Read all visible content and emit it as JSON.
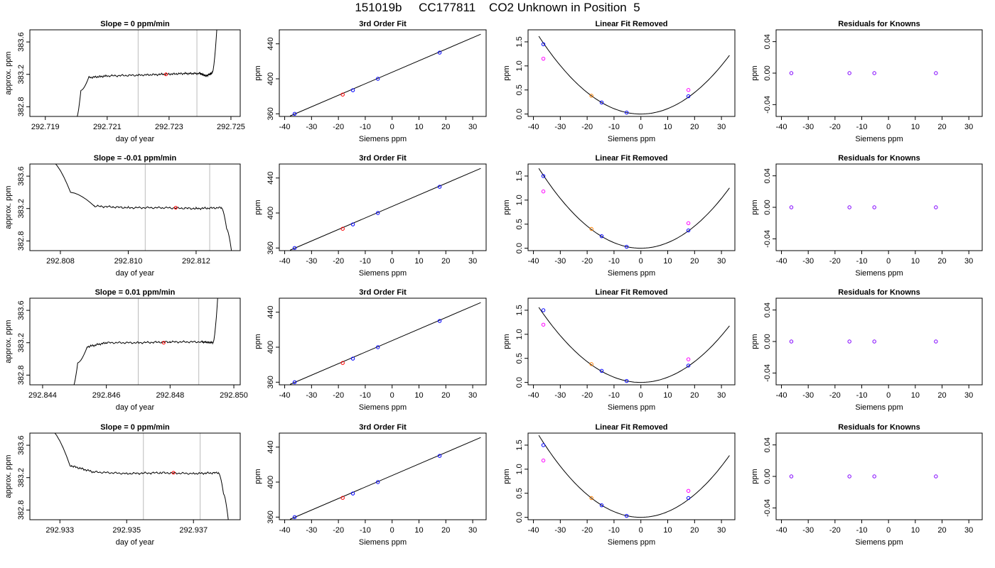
{
  "page_title": "151019b     CC177811    CO2 Unknown in Position  5",
  "chart_data": [
    {
      "type": "line",
      "title": "Slope =  0  ppm/min",
      "xlabel": "day of year",
      "ylabel": "approx. ppm",
      "xlim": [
        292.7185,
        292.7253
      ],
      "ylim": [
        382.68,
        383.75
      ],
      "xticks": [
        "292.719",
        "292.721",
        "292.723",
        "292.725"
      ],
      "yticks": [
        "382.8",
        "383.2",
        "383.6"
      ],
      "vlines": [
        292.722,
        292.7239
      ],
      "line_color": "#000000",
      "vline_color": "#bbbbbb",
      "series": [
        {
          "values": [
            [
              292.72,
              382.65
            ],
            [
              292.72015,
              383.0
            ],
            [
              292.7204,
              383.16
            ],
            [
              292.721,
              383.18
            ],
            [
              292.722,
              383.19
            ],
            [
              292.7228,
              383.2
            ],
            [
              292.7235,
              383.21
            ],
            [
              292.724,
              383.21
            ],
            [
              292.7242,
              383.18
            ],
            [
              292.7244,
              383.22
            ],
            [
              292.72455,
              383.8
            ]
          ]
        }
      ],
      "marker": {
        "x": 292.7229,
        "y": 383.2,
        "color": "#ff0000"
      }
    },
    {
      "type": "scatter",
      "title": "3rd Order Fit",
      "xlabel": "Siemens ppm",
      "ylabel": "ppm",
      "xlim": [
        -42,
        35
      ],
      "ylim": [
        357,
        456
      ],
      "xticks": [
        -40,
        -30,
        -20,
        -10,
        0,
        10,
        20,
        30
      ],
      "yticks": [
        360,
        400,
        440
      ],
      "line": [
        [
          -38,
          357.5
        ],
        [
          33,
          451
        ]
      ],
      "points": [
        {
          "x": -36.3,
          "y": 360.0,
          "color": "#0000ff"
        },
        {
          "x": -18.4,
          "y": 382.0,
          "color": "#ff0000"
        },
        {
          "x": -14.6,
          "y": 387.0,
          "color": "#0000ff"
        },
        {
          "x": -5.3,
          "y": 400.0,
          "color": "#0000ff"
        },
        {
          "x": 17.7,
          "y": 430.0,
          "color": "#0000ff"
        }
      ]
    },
    {
      "type": "scatter",
      "title": "Linear Fit Removed",
      "xlabel": "Siemens ppm",
      "ylabel": "ppm",
      "xlim": [
        -42,
        35
      ],
      "ylim": [
        -0.05,
        1.75
      ],
      "xticks": [
        -40,
        -30,
        -20,
        -10,
        0,
        10,
        20,
        30
      ],
      "yticks": [
        "0.0",
        "0.5",
        "1.0",
        "1.5"
      ],
      "curve_coefficient": 0.00112,
      "curve_range": [
        -38,
        33
      ],
      "points": [
        {
          "x": -36.3,
          "y": 1.45,
          "color": "#0000ff"
        },
        {
          "x": -36.3,
          "y": 1.15,
          "color": "#ff00ff"
        },
        {
          "x": -18.4,
          "y": 0.38,
          "color": "#ff8000"
        },
        {
          "x": -14.6,
          "y": 0.24,
          "color": "#0000ff"
        },
        {
          "x": -5.3,
          "y": 0.03,
          "color": "#0000ff"
        },
        {
          "x": 17.7,
          "y": 0.37,
          "color": "#0000ff"
        },
        {
          "x": 17.7,
          "y": 0.5,
          "color": "#ff00ff"
        }
      ]
    },
    {
      "type": "scatter",
      "title": "Residuals for Knowns",
      "xlabel": "Siemens ppm",
      "ylabel": "ppm",
      "xlim": [
        -42,
        35
      ],
      "ylim": [
        -0.055,
        0.055
      ],
      "xticks": [
        -40,
        -30,
        -20,
        -10,
        0,
        10,
        20,
        30
      ],
      "yticks": [
        "-0.04",
        "0.00",
        "0.04"
      ],
      "points": [
        {
          "x": -36.3,
          "y": 0,
          "color": "#8000ff"
        },
        {
          "x": -14.6,
          "y": 0,
          "color": "#8000ff"
        },
        {
          "x": -5.3,
          "y": 0,
          "color": "#8000ff"
        },
        {
          "x": 17.7,
          "y": 0,
          "color": "#8000ff"
        }
      ]
    },
    {
      "type": "line",
      "title": "Slope =  -0.01  ppm/min",
      "xlabel": "day of year",
      "ylabel": "approx. ppm",
      "xlim": [
        292.8071,
        292.8133
      ],
      "ylim": [
        382.68,
        383.75
      ],
      "xticks": [
        "292.808",
        "292.810",
        "292.812"
      ],
      "yticks": [
        "382.8",
        "383.2",
        "383.6"
      ],
      "vlines": [
        292.8105,
        292.8124
      ],
      "line_color": "#000000",
      "vline_color": "#bbbbbb",
      "series": [
        {
          "values": [
            [
              292.8077,
              383.8
            ],
            [
              292.8083,
              383.4
            ],
            [
              292.809,
              383.23
            ],
            [
              292.81,
              383.21
            ],
            [
              292.811,
              383.21
            ],
            [
              292.812,
              383.2
            ],
            [
              292.81275,
              383.21
            ],
            [
              292.8129,
              382.95
            ],
            [
              292.81305,
              382.65
            ]
          ]
        }
      ],
      "marker": {
        "x": 292.8114,
        "y": 383.21,
        "color": "#ff0000"
      }
    },
    {
      "type": "scatter",
      "title": "3rd Order Fit",
      "xlabel": "Siemens ppm",
      "ylabel": "ppm",
      "xlim": [
        -42,
        35
      ],
      "ylim": [
        357,
        456
      ],
      "xticks": [
        -40,
        -30,
        -20,
        -10,
        0,
        10,
        20,
        30
      ],
      "yticks": [
        360,
        400,
        440
      ],
      "line": [
        [
          -38,
          357.5
        ],
        [
          33,
          451
        ]
      ],
      "points": [
        {
          "x": -36.3,
          "y": 360.0,
          "color": "#0000ff"
        },
        {
          "x": -18.4,
          "y": 382.0,
          "color": "#ff0000"
        },
        {
          "x": -14.6,
          "y": 387.0,
          "color": "#0000ff"
        },
        {
          "x": -5.3,
          "y": 400.0,
          "color": "#0000ff"
        },
        {
          "x": 17.7,
          "y": 430.0,
          "color": "#0000ff"
        }
      ]
    },
    {
      "type": "scatter",
      "title": "Linear Fit Removed",
      "xlabel": "Siemens ppm",
      "ylabel": "ppm",
      "xlim": [
        -42,
        35
      ],
      "ylim": [
        -0.05,
        1.75
      ],
      "xticks": [
        -40,
        -30,
        -20,
        -10,
        0,
        10,
        20,
        30
      ],
      "yticks": [
        "0.0",
        "0.5",
        "1.0",
        "1.5"
      ],
      "curve_coefficient": 0.00115,
      "curve_range": [
        -38,
        33
      ],
      "points": [
        {
          "x": -36.3,
          "y": 1.5,
          "color": "#0000ff"
        },
        {
          "x": -36.3,
          "y": 1.18,
          "color": "#ff00ff"
        },
        {
          "x": -18.4,
          "y": 0.4,
          "color": "#ff8000"
        },
        {
          "x": -14.6,
          "y": 0.25,
          "color": "#0000ff"
        },
        {
          "x": -5.3,
          "y": 0.03,
          "color": "#0000ff"
        },
        {
          "x": 17.7,
          "y": 0.37,
          "color": "#0000ff"
        },
        {
          "x": 17.7,
          "y": 0.52,
          "color": "#ff00ff"
        }
      ]
    },
    {
      "type": "scatter",
      "title": "Residuals for Knowns",
      "xlabel": "Siemens ppm",
      "ylabel": "ppm",
      "xlim": [
        -42,
        35
      ],
      "ylim": [
        -0.055,
        0.055
      ],
      "xticks": [
        -40,
        -30,
        -20,
        -10,
        0,
        10,
        20,
        30
      ],
      "yticks": [
        "-0.04",
        "0.00",
        "0.04"
      ],
      "points": [
        {
          "x": -36.3,
          "y": 0,
          "color": "#8000ff"
        },
        {
          "x": -14.6,
          "y": 0,
          "color": "#8000ff"
        },
        {
          "x": -5.3,
          "y": 0,
          "color": "#8000ff"
        },
        {
          "x": 17.7,
          "y": 0,
          "color": "#8000ff"
        }
      ]
    },
    {
      "type": "line",
      "title": "Slope =  0.01  ppm/min",
      "xlabel": "day of year",
      "ylabel": "approx. ppm",
      "xlim": [
        292.8436,
        292.8502
      ],
      "ylim": [
        382.68,
        383.75
      ],
      "xticks": [
        "292.844",
        "292.846",
        "292.848",
        "292.850"
      ],
      "yticks": [
        "382.8",
        "383.2",
        "383.6"
      ],
      "vlines": [
        292.847,
        292.8489
      ],
      "line_color": "#000000",
      "vline_color": "#bbbbbb",
      "series": [
        {
          "values": [
            [
              292.84495,
              382.65
            ],
            [
              292.8451,
              382.95
            ],
            [
              292.8454,
              383.15
            ],
            [
              292.846,
              383.2
            ],
            [
              292.847,
              383.2
            ],
            [
              292.848,
              383.21
            ],
            [
              292.849,
              383.21
            ],
            [
              292.84935,
              383.2
            ],
            [
              292.8495,
              383.8
            ]
          ]
        }
      ],
      "marker": {
        "x": 292.8478,
        "y": 383.2,
        "color": "#ff0000"
      }
    },
    {
      "type": "scatter",
      "title": "3rd Order Fit",
      "xlabel": "Siemens ppm",
      "ylabel": "ppm",
      "xlim": [
        -42,
        35
      ],
      "ylim": [
        357,
        456
      ],
      "xticks": [
        -40,
        -30,
        -20,
        -10,
        0,
        10,
        20,
        30
      ],
      "yticks": [
        360,
        400,
        440
      ],
      "line": [
        [
          -38,
          357.5
        ],
        [
          33,
          451
        ]
      ],
      "points": [
        {
          "x": -36.3,
          "y": 360.0,
          "color": "#0000ff"
        },
        {
          "x": -18.4,
          "y": 382.0,
          "color": "#ff0000"
        },
        {
          "x": -14.6,
          "y": 387.0,
          "color": "#0000ff"
        },
        {
          "x": -5.3,
          "y": 400.0,
          "color": "#0000ff"
        },
        {
          "x": 17.7,
          "y": 430.0,
          "color": "#0000ff"
        }
      ]
    },
    {
      "type": "scatter",
      "title": "Linear Fit Removed",
      "xlabel": "Siemens ppm",
      "ylabel": "ppm",
      "xlim": [
        -42,
        35
      ],
      "ylim": [
        -0.05,
        1.75
      ],
      "xticks": [
        -40,
        -30,
        -20,
        -10,
        0,
        10,
        20,
        30
      ],
      "yticks": [
        "0.0",
        "0.5",
        "1.0",
        "1.5"
      ],
      "curve_coefficient": 0.00108,
      "curve_range": [
        -38,
        33
      ],
      "points": [
        {
          "x": -36.3,
          "y": 1.5,
          "color": "#0000ff"
        },
        {
          "x": -36.3,
          "y": 1.2,
          "color": "#ff00ff"
        },
        {
          "x": -18.4,
          "y": 0.38,
          "color": "#ff8000"
        },
        {
          "x": -14.6,
          "y": 0.24,
          "color": "#0000ff"
        },
        {
          "x": -5.3,
          "y": 0.03,
          "color": "#0000ff"
        },
        {
          "x": 17.7,
          "y": 0.35,
          "color": "#0000ff"
        },
        {
          "x": 17.7,
          "y": 0.48,
          "color": "#ff00ff"
        }
      ]
    },
    {
      "type": "scatter",
      "title": "Residuals for Knowns",
      "xlabel": "Siemens ppm",
      "ylabel": "ppm",
      "xlim": [
        -42,
        35
      ],
      "ylim": [
        -0.055,
        0.055
      ],
      "xticks": [
        -40,
        -30,
        -20,
        -10,
        0,
        10,
        20,
        30
      ],
      "yticks": [
        "-0.04",
        "0.00",
        "0.04"
      ],
      "points": [
        {
          "x": -36.3,
          "y": 0,
          "color": "#8000ff"
        },
        {
          "x": -14.6,
          "y": 0,
          "color": "#8000ff"
        },
        {
          "x": -5.3,
          "y": 0,
          "color": "#8000ff"
        },
        {
          "x": 17.7,
          "y": 0,
          "color": "#8000ff"
        }
      ]
    },
    {
      "type": "line",
      "title": "Slope =  0  ppm/min",
      "xlabel": "day of year",
      "ylabel": "approx. ppm",
      "xlim": [
        292.9321,
        292.9384
      ],
      "ylim": [
        382.68,
        383.75
      ],
      "xticks": [
        "292.933",
        "292.935",
        "292.937"
      ],
      "yticks": [
        "382.8",
        "383.2",
        "383.6"
      ],
      "vlines": [
        292.9355,
        292.9372
      ],
      "line_color": "#000000",
      "vline_color": "#bbbbbb",
      "series": [
        {
          "values": [
            [
              292.9327,
              383.8
            ],
            [
              292.9333,
              383.35
            ],
            [
              292.934,
              383.27
            ],
            [
              292.935,
              383.25
            ],
            [
              292.936,
              383.26
            ],
            [
              292.937,
              383.25
            ],
            [
              292.93775,
              383.26
            ],
            [
              292.9379,
              383.0
            ],
            [
              292.93805,
              382.65
            ]
          ]
        }
      ],
      "marker": {
        "x": 292.9364,
        "y": 383.26,
        "color": "#ff0000"
      }
    },
    {
      "type": "scatter",
      "title": "3rd Order Fit",
      "xlabel": "Siemens ppm",
      "ylabel": "ppm",
      "xlim": [
        -42,
        35
      ],
      "ylim": [
        357,
        456
      ],
      "xticks": [
        -40,
        -30,
        -20,
        -10,
        0,
        10,
        20,
        30
      ],
      "yticks": [
        360,
        400,
        440
      ],
      "line": [
        [
          -38,
          357.5
        ],
        [
          33,
          451
        ]
      ],
      "points": [
        {
          "x": -36.3,
          "y": 360.0,
          "color": "#0000ff"
        },
        {
          "x": -18.4,
          "y": 382.0,
          "color": "#ff0000"
        },
        {
          "x": -14.6,
          "y": 387.0,
          "color": "#0000ff"
        },
        {
          "x": -5.3,
          "y": 400.0,
          "color": "#0000ff"
        },
        {
          "x": 17.7,
          "y": 430.0,
          "color": "#0000ff"
        }
      ]
    },
    {
      "type": "scatter",
      "title": "Linear Fit Removed",
      "xlabel": "Siemens ppm",
      "ylabel": "ppm",
      "xlim": [
        -42,
        35
      ],
      "ylim": [
        -0.05,
        1.75
      ],
      "xticks": [
        -40,
        -30,
        -20,
        -10,
        0,
        10,
        20,
        30
      ],
      "yticks": [
        "0.0",
        "0.5",
        "1.0",
        "1.5"
      ],
      "curve_coefficient": 0.00118,
      "curve_range": [
        -38,
        33
      ],
      "points": [
        {
          "x": -36.3,
          "y": 1.5,
          "color": "#0000ff"
        },
        {
          "x": -36.3,
          "y": 1.18,
          "color": "#ff00ff"
        },
        {
          "x": -18.4,
          "y": 0.4,
          "color": "#ff8000"
        },
        {
          "x": -14.6,
          "y": 0.25,
          "color": "#0000ff"
        },
        {
          "x": -5.3,
          "y": 0.03,
          "color": "#0000ff"
        },
        {
          "x": 17.7,
          "y": 0.4,
          "color": "#0000ff"
        },
        {
          "x": 17.7,
          "y": 0.55,
          "color": "#ff00ff"
        }
      ]
    },
    {
      "type": "scatter",
      "title": "Residuals for Knowns",
      "xlabel": "Siemens ppm",
      "ylabel": "ppm",
      "xlim": [
        -42,
        35
      ],
      "ylim": [
        -0.055,
        0.055
      ],
      "xticks": [
        -40,
        -30,
        -20,
        -10,
        0,
        10,
        20,
        30
      ],
      "yticks": [
        "-0.04",
        "0.00",
        "0.04"
      ],
      "points": [
        {
          "x": -36.3,
          "y": 0,
          "color": "#8000ff"
        },
        {
          "x": -14.6,
          "y": 0,
          "color": "#8000ff"
        },
        {
          "x": -5.3,
          "y": 0,
          "color": "#8000ff"
        },
        {
          "x": 17.7,
          "y": 0,
          "color": "#8000ff"
        }
      ]
    }
  ]
}
